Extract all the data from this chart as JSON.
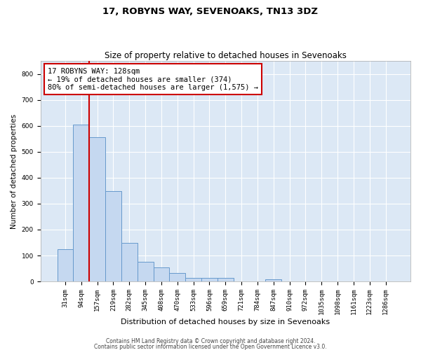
{
  "title1": "17, ROBYNS WAY, SEVENOAKS, TN13 3DZ",
  "title2": "Size of property relative to detached houses in Sevenoaks",
  "xlabel": "Distribution of detached houses by size in Sevenoaks",
  "ylabel": "Number of detached properties",
  "categories": [
    "31sqm",
    "94sqm",
    "157sqm",
    "219sqm",
    "282sqm",
    "345sqm",
    "408sqm",
    "470sqm",
    "533sqm",
    "596sqm",
    "659sqm",
    "721sqm",
    "784sqm",
    "847sqm",
    "910sqm",
    "972sqm",
    "1035sqm",
    "1098sqm",
    "1161sqm",
    "1223sqm",
    "1286sqm"
  ],
  "values": [
    125,
    605,
    555,
    348,
    148,
    75,
    55,
    32,
    15,
    13,
    13,
    0,
    0,
    8,
    0,
    0,
    0,
    0,
    0,
    0,
    0
  ],
  "bar_color": "#c5d8f0",
  "bar_edge_color": "#6699cc",
  "vline_x": 1.5,
  "vline_color": "#cc0000",
  "annotation_text": "17 ROBYNS WAY: 128sqm\n← 19% of detached houses are smaller (374)\n80% of semi-detached houses are larger (1,575) →",
  "annotation_box_color": "#ffffff",
  "annotation_box_edge": "#cc0000",
  "ylim": [
    0,
    850
  ],
  "yticks": [
    0,
    100,
    200,
    300,
    400,
    500,
    600,
    700,
    800
  ],
  "footer1": "Contains HM Land Registry data © Crown copyright and database right 2024.",
  "footer2": "Contains public sector information licensed under the Open Government Licence v3.0.",
  "bg_color": "#ffffff",
  "plot_bg_color": "#dce8f5",
  "grid_color": "#ffffff",
  "title1_fontsize": 9.5,
  "title2_fontsize": 8.5,
  "xlabel_fontsize": 8,
  "ylabel_fontsize": 7.5,
  "tick_fontsize": 6.5,
  "ann_fontsize": 7.5,
  "footer_fontsize": 5.5
}
